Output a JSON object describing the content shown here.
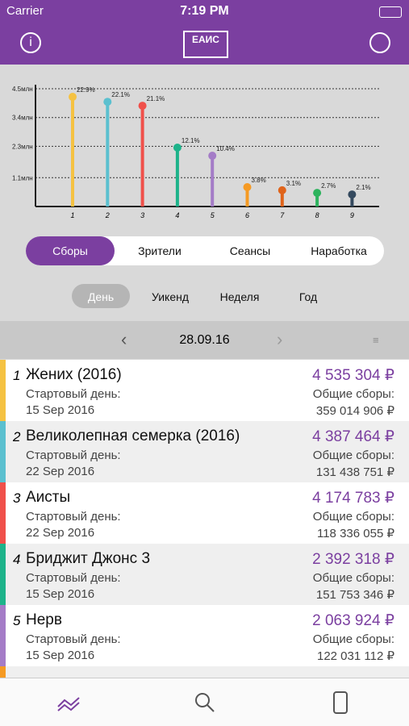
{
  "status_bar": {
    "carrier": "Carrier",
    "time": "7:19 PM"
  },
  "header": {
    "logo": "ЕАИС"
  },
  "chart": {
    "type": "lollipop",
    "categories": [
      "1",
      "2",
      "3",
      "4",
      "5",
      "6",
      "7",
      "8",
      "9"
    ],
    "values": [
      4190000,
      4000000,
      3850000,
      2250000,
      1940000,
      740000,
      620000,
      520000,
      460000
    ],
    "labels": [
      "22.9%",
      "22.1%",
      "21.1%",
      "12.1%",
      "10.4%",
      "3.8%",
      "3.1%",
      "2.7%",
      "2.1%"
    ],
    "colors": [
      "#f5c242",
      "#5bc0cf",
      "#f0504a",
      "#1db38a",
      "#a47cc7",
      "#f59a23",
      "#e0641b",
      "#2db35d",
      "#34495e"
    ],
    "ylim": [
      0,
      4500000
    ],
    "yticks": [
      {
        "value": 1100000,
        "label": "1.1млн"
      },
      {
        "value": 2300000,
        "label": "2.3млн"
      },
      {
        "value": 3400000,
        "label": "3.4млн"
      },
      {
        "value": 4500000,
        "label": "4.5млн"
      }
    ],
    "grid": true
  },
  "tabs": [
    "Сборы",
    "Зрители",
    "Сеансы",
    "Наработка"
  ],
  "periods": [
    "День",
    "Уикенд",
    "Неделя",
    "Год"
  ],
  "date": "28.09.16",
  "rows": [
    {
      "rank": "1",
      "title": "Жених (2016)",
      "start_label": "Стартовый день:",
      "start": "15 Sep 2016",
      "amount": "4 535 304 ₽",
      "total_label": "Общие сборы:",
      "total": "359 014 906 ₽"
    },
    {
      "rank": "2",
      "title": "Великолепная семерка (2016)",
      "start_label": "Стартовый день:",
      "start": "22 Sep 2016",
      "amount": "4 387 464 ₽",
      "total_label": "Общие сборы:",
      "total": "131 438 751 ₽"
    },
    {
      "rank": "3",
      "title": "Аисты",
      "start_label": "Стартовый день:",
      "start": "22 Sep 2016",
      "amount": "4 174 783 ₽",
      "total_label": "Общие сборы:",
      "total": "118 336 055 ₽"
    },
    {
      "rank": "4",
      "title": "Бриджит Джонс 3",
      "start_label": "Стартовый день:",
      "start": "15 Sep 2016",
      "amount": "2 392 318 ₽",
      "total_label": "Общие сборы:",
      "total": "151 753 346 ₽"
    },
    {
      "rank": "5",
      "title": "Нерв",
      "start_label": "Стартовый день:",
      "start": "15 Sep 2016",
      "amount": "2 063 924 ₽",
      "total_label": "Общие сборы:",
      "total": "122 031 112 ₽"
    }
  ]
}
